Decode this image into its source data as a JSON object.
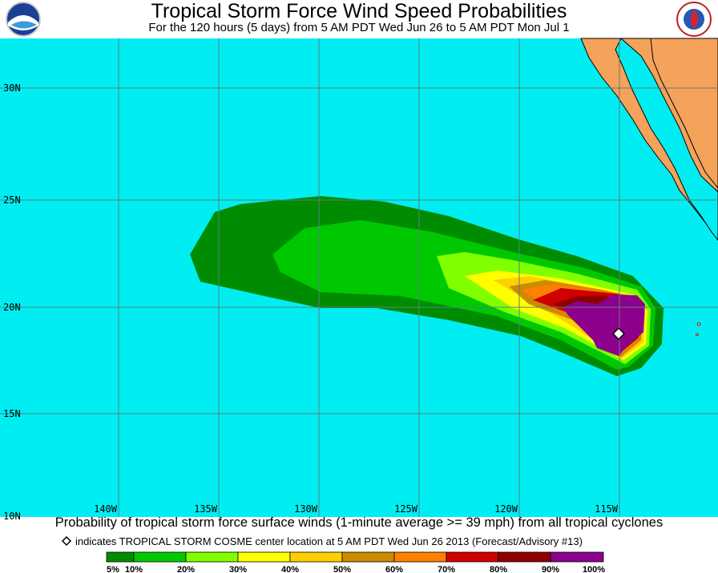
{
  "header": {
    "title": "Tropical Storm Force Wind Speed Probabilities",
    "subtitle": "For the 120 hours (5 days) from 5 AM PDT Wed Jun 26 to 5 AM PDT Mon Jul 1"
  },
  "map": {
    "lat_labels": [
      "30N",
      "25N",
      "20N",
      "15N",
      "10N"
    ],
    "lon_labels": [
      "140W",
      "135W",
      "130W",
      "125W",
      "120W",
      "115W"
    ]
  },
  "footer": {
    "caption": "Probability of tropical storm force surface winds (1-minute average >= 39 mph) from all tropical cyclones",
    "marker_note": "indicates TROPICAL STORM COSME center location at 5 AM PDT Wed Jun 26 2013 (Forecast/Advisory #13)"
  },
  "legend": {
    "labels": [
      "5%",
      "10%",
      "20%",
      "30%",
      "40%",
      "50%",
      "60%",
      "70%",
      "80%",
      "90%",
      "100%"
    ]
  }
}
